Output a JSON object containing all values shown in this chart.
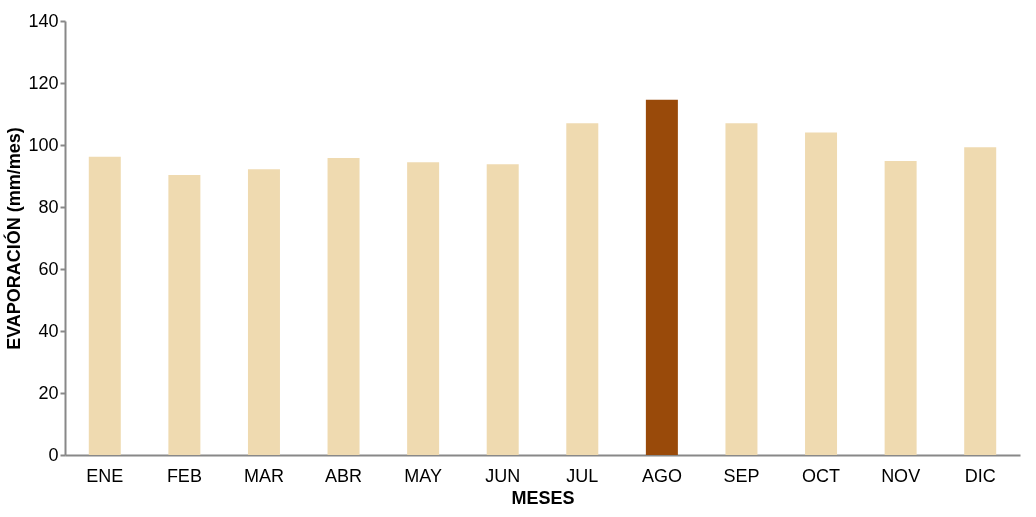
{
  "chart_data": {
    "type": "bar",
    "xlabel": "MESES",
    "ylabel": "EVAPORACIÓN (mm/mes)",
    "categories": [
      "ENE",
      "FEB",
      "MAR",
      "ABR",
      "MAY",
      "JUN",
      "JUL",
      "AGO",
      "SEP",
      "OCT",
      "NOV",
      "DIC"
    ],
    "values": [
      96.2,
      90.3,
      92.2,
      95.8,
      94.4,
      93.8,
      107,
      114.6,
      107,
      104,
      94.8,
      99.3
    ],
    "colors": [
      "#efdab0",
      "#efdab0",
      "#efdab0",
      "#efdab0",
      "#efdab0",
      "#efdab0",
      "#efdab0",
      "#994a0a",
      "#efdab0",
      "#efdab0",
      "#efdab0",
      "#efdab0"
    ],
    "ylim": [
      0,
      140
    ],
    "yticks": [
      0,
      20,
      40,
      60,
      80,
      100,
      120,
      140
    ],
    "grid": false
  }
}
